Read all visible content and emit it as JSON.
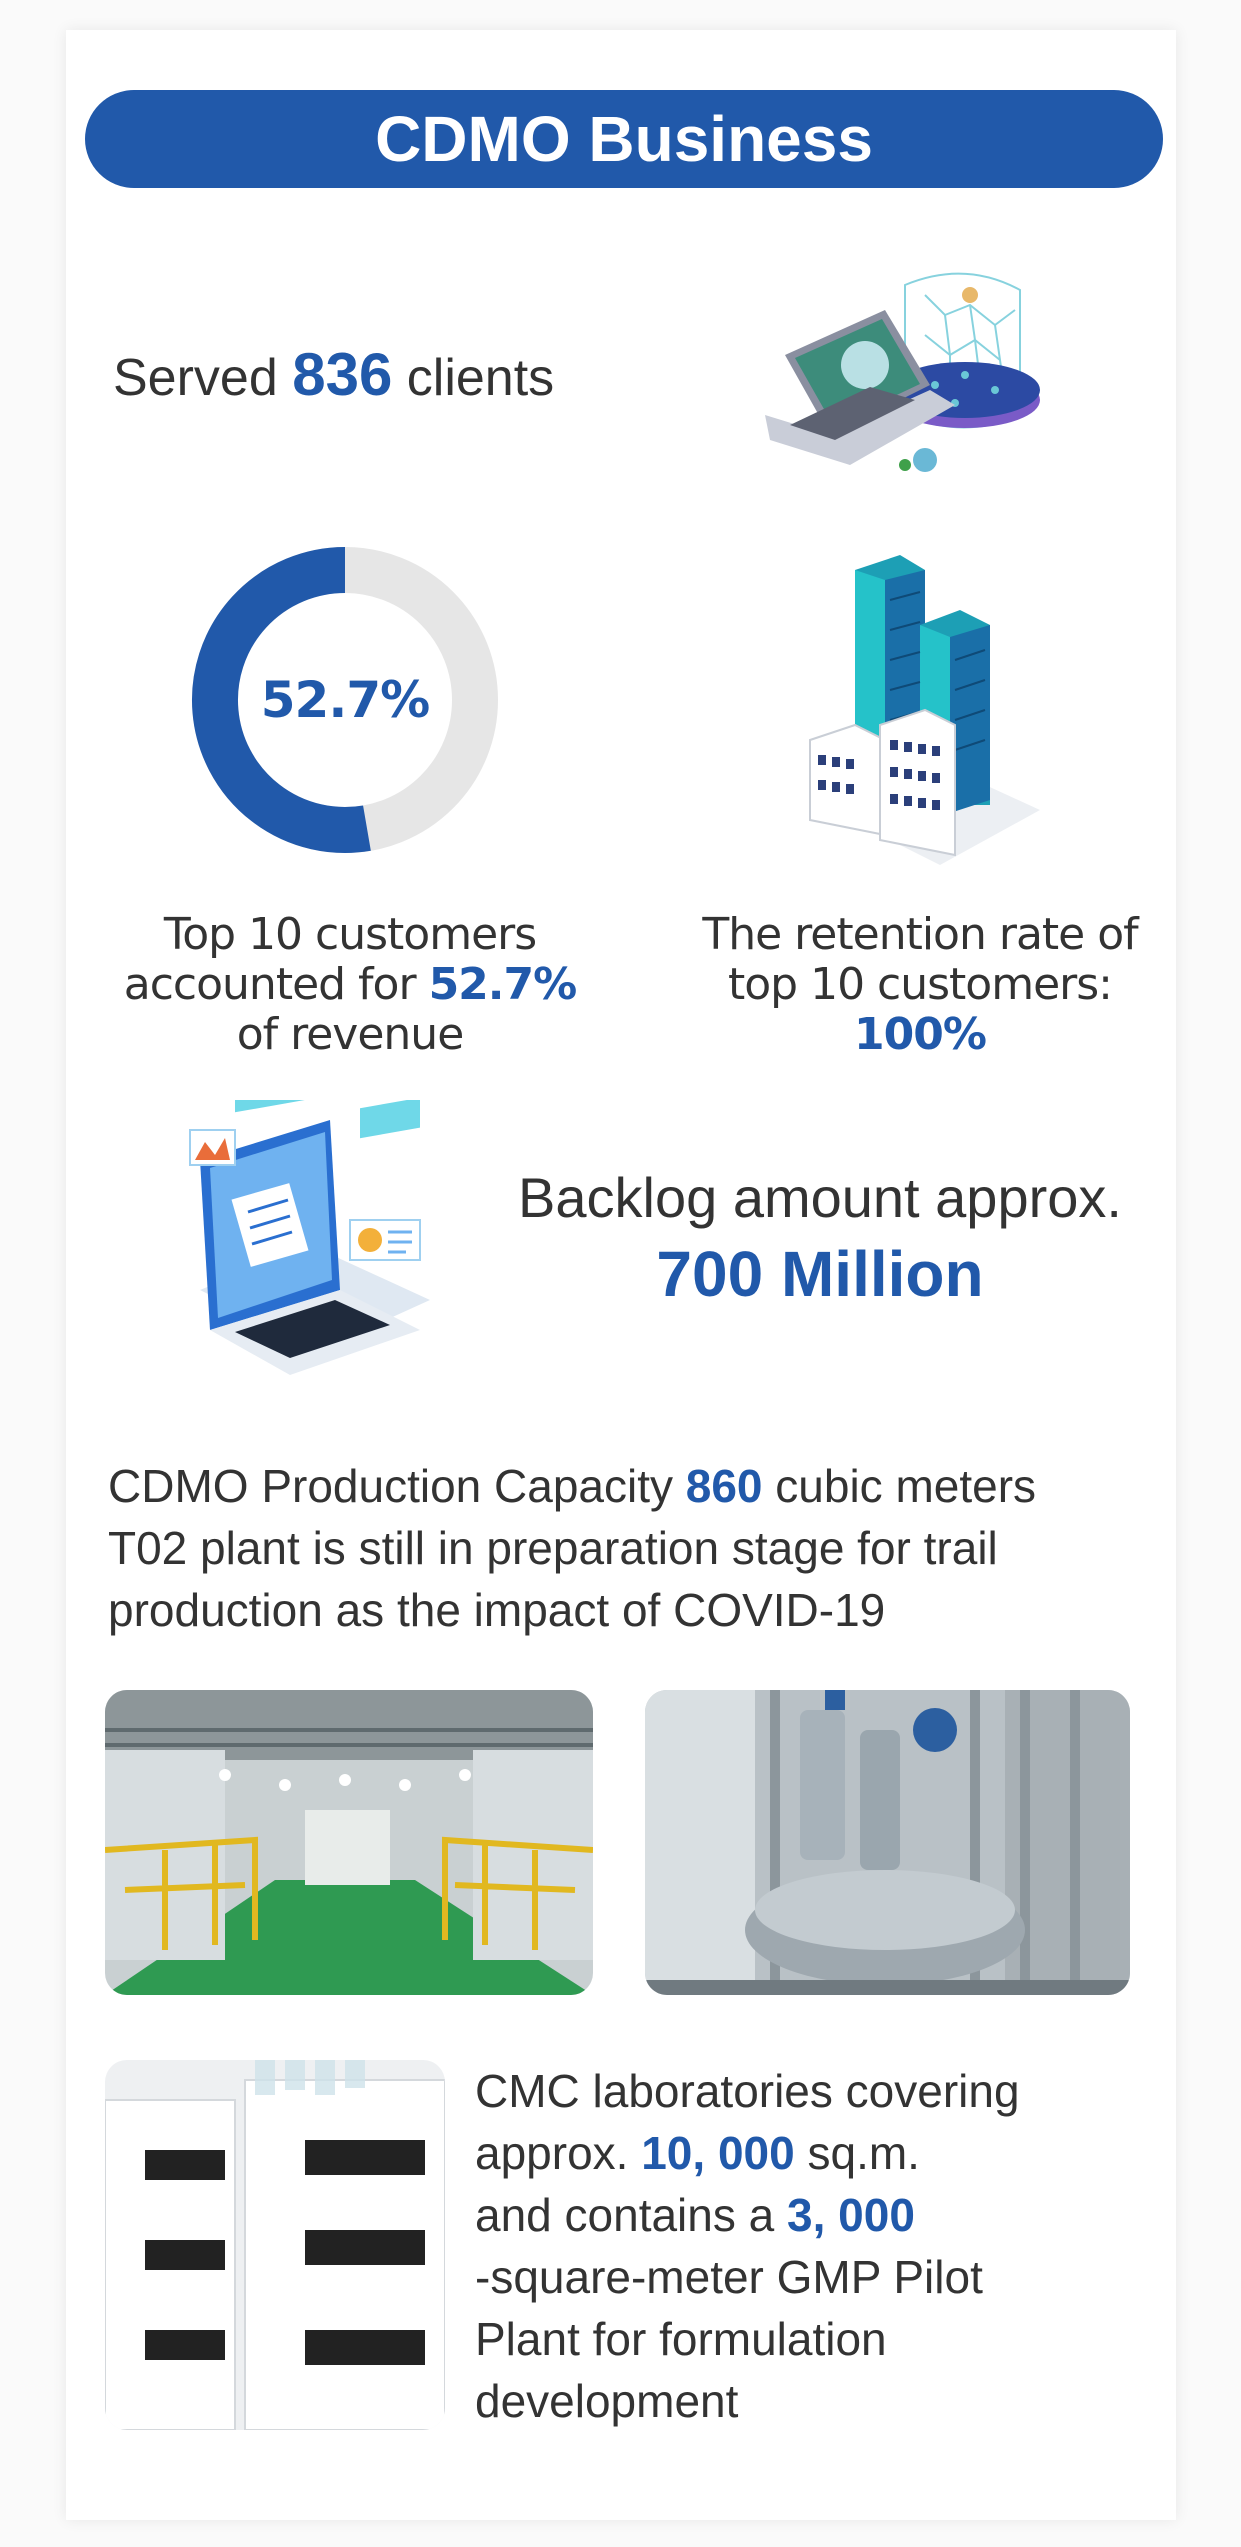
{
  "title": "CDMO Business",
  "served": {
    "prefix": "Served",
    "value": "836",
    "suffix": "clients"
  },
  "top10": {
    "donut_value": "52.7%",
    "share_fraction": 0.527,
    "line1": "Top 10 customers",
    "line2_prefix": "accounted for",
    "line2_value": "52.7%",
    "line3": "of revenue"
  },
  "retention": {
    "line1": "The retention rate of",
    "line2": "top 10 customers:",
    "value": "100%"
  },
  "backlog": {
    "label": "Backlog amount approx.",
    "value": "700 Million"
  },
  "capacity": {
    "prefix": "CDMO Production Capacity",
    "value": "860",
    "suffix": "cubic meters",
    "note": "T02 plant is still in preparation stage for trail production as the impact of COVID-19"
  },
  "cmc": {
    "line1": "CMC laboratories covering",
    "line2_prefix": "approx.",
    "line2_value": "10, 000",
    "line2_suffix": "sq.m.",
    "line3_prefix": "and contains a",
    "line3_value": "3, 000",
    "line4": "-square-meter GMP Pilot",
    "line5": "Plant for formulation",
    "line6": "development"
  },
  "colors": {
    "accent": "#2159aa",
    "donut_rest": "#e6e6e6",
    "text": "#333333"
  },
  "icons": {
    "clients": "laptop-network-icon",
    "buildings": "buildings-icon",
    "backlog": "laptop-charts-icon",
    "plant_photo_1": "production-hall-photo",
    "plant_photo_2": "reactor-photo",
    "lab_photo": "laboratory-instruments-photo"
  }
}
